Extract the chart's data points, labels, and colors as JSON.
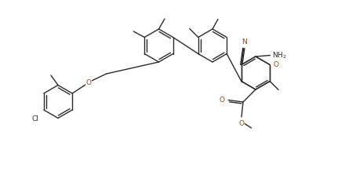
{
  "bg_color": "#ffffff",
  "line_color": "#2a2a2a",
  "atom_colors": {
    "N": "#8B4513",
    "O": "#8B4513",
    "Cl": "#2a2a2a"
  },
  "figsize": [
    4.4,
    2.37
  ],
  "dpi": 100,
  "xlim": [
    0,
    8.8
  ],
  "ylim": [
    0,
    4.74
  ]
}
